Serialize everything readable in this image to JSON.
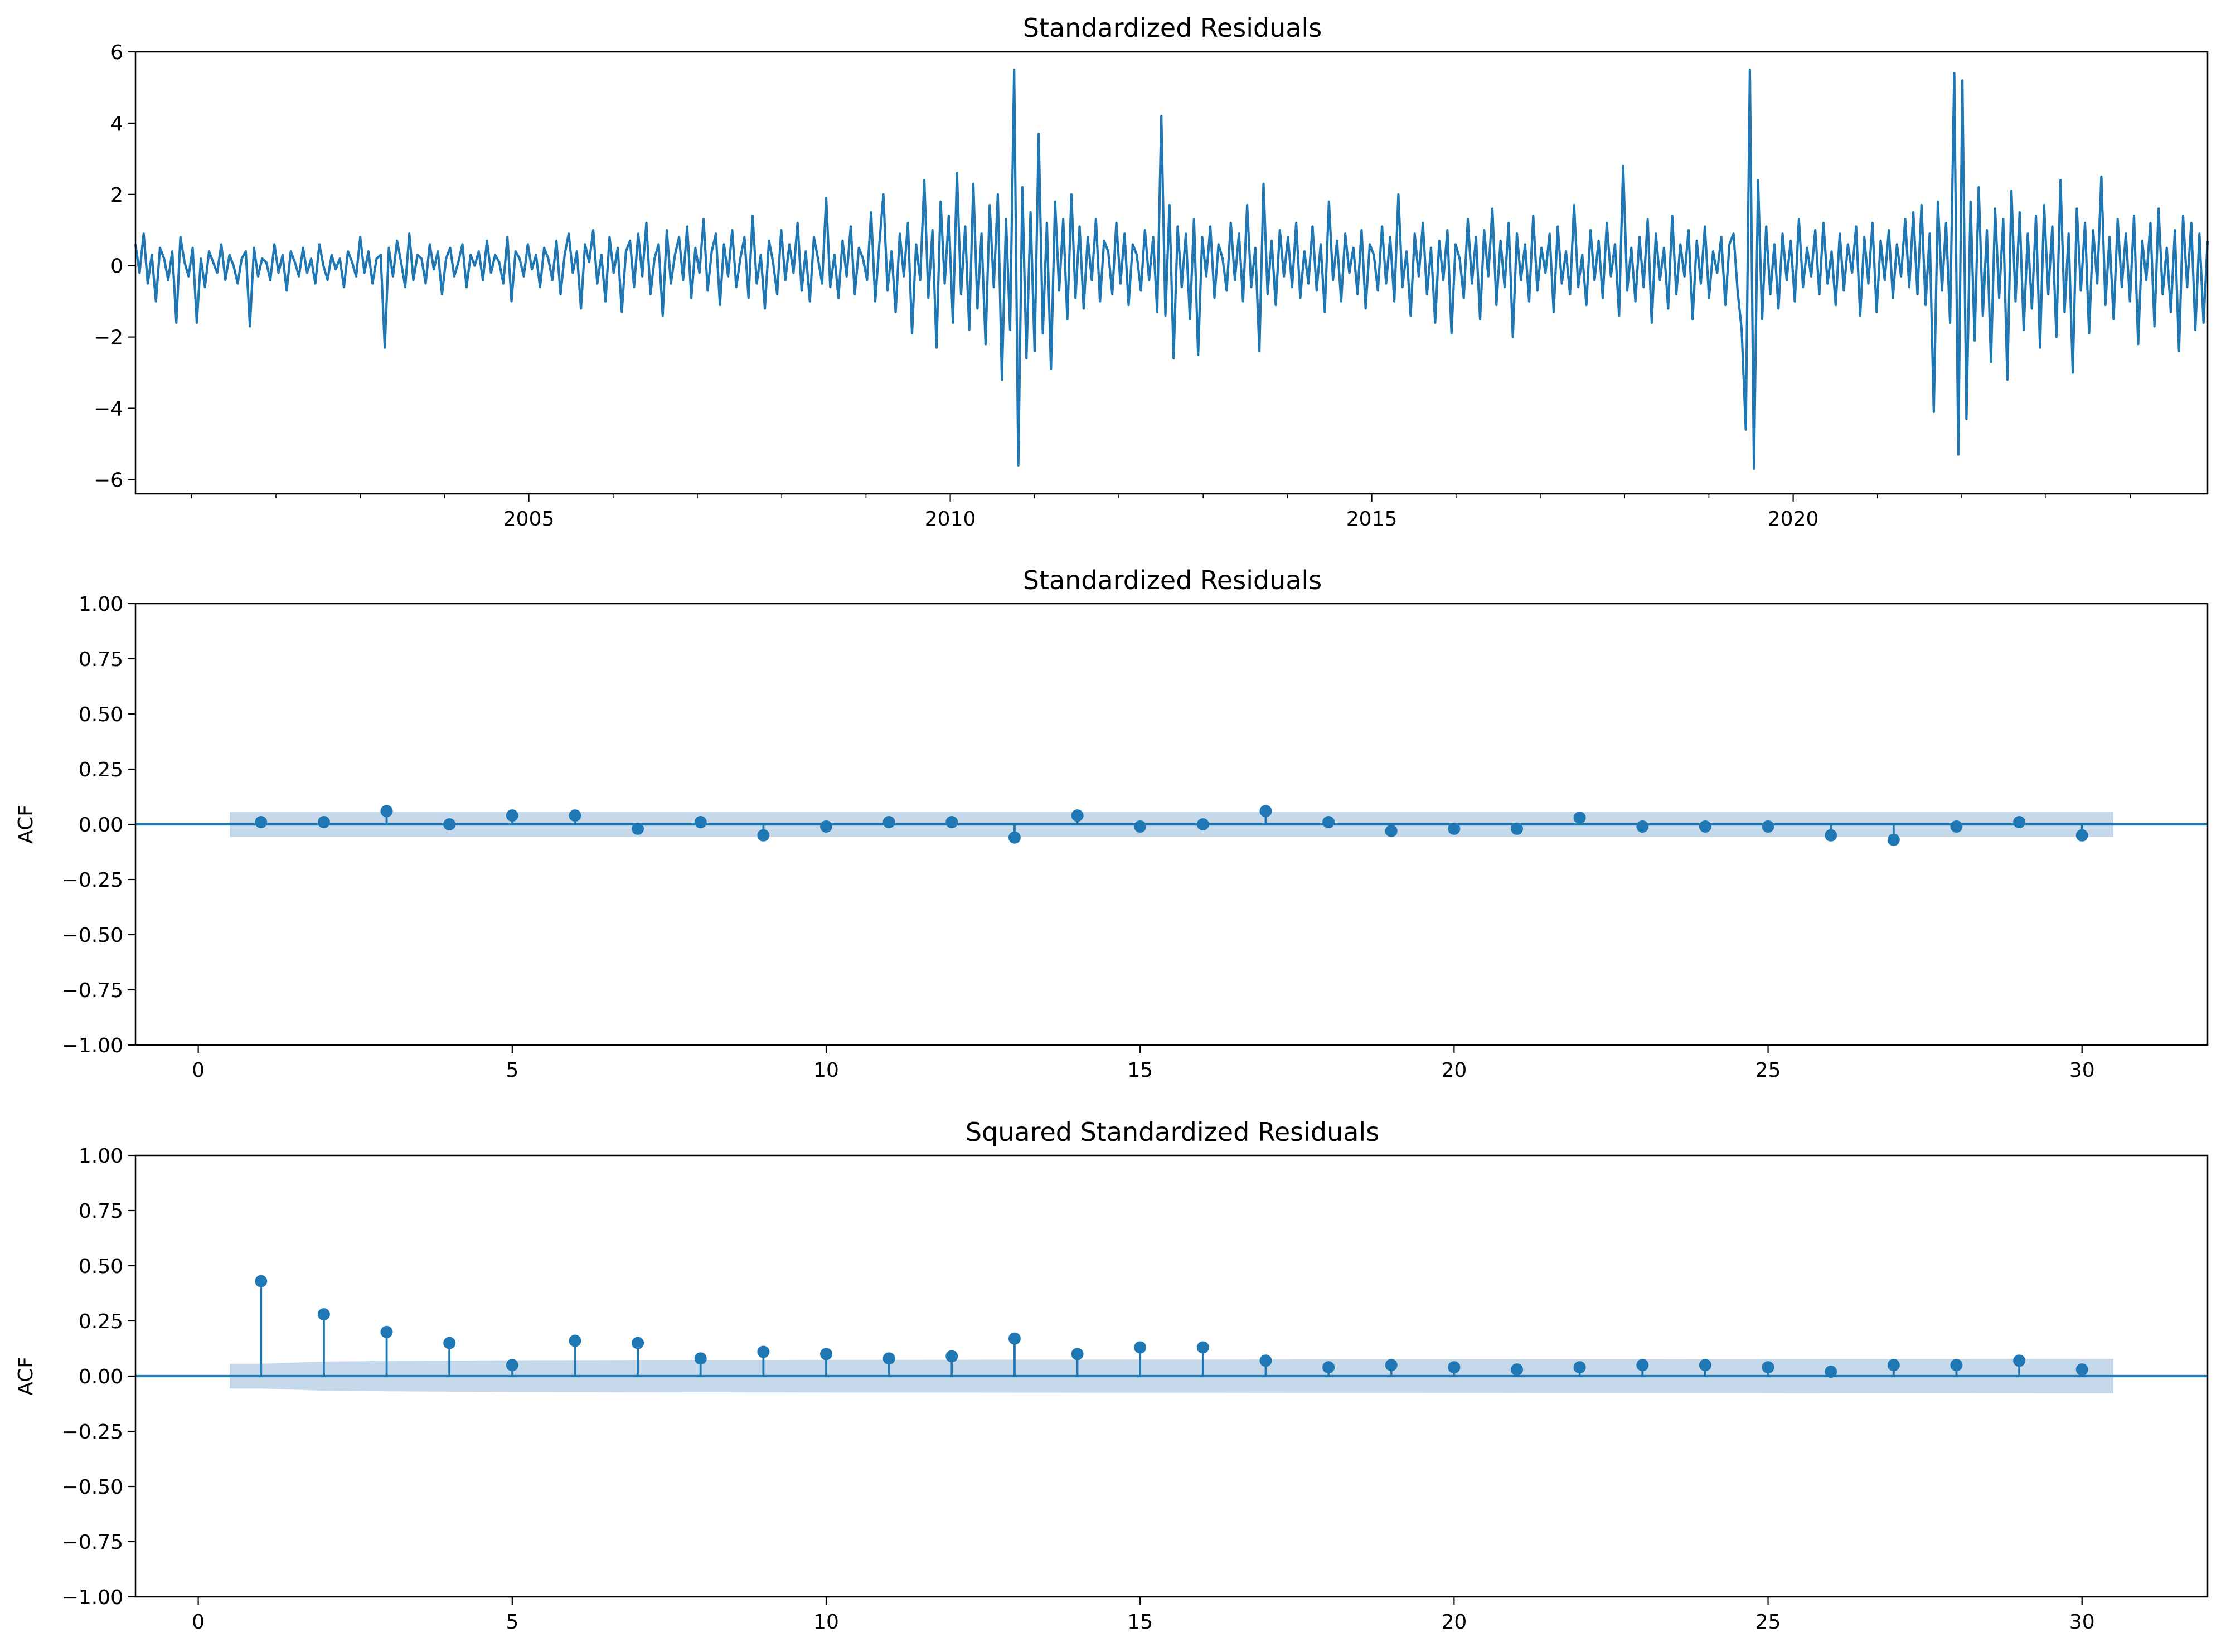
{
  "chart_data": [
    {
      "type": "line",
      "title": "Standardized Residuals",
      "xlabel": "",
      "ylabel": "",
      "x_range": [
        "2000-05",
        "2024-12"
      ],
      "ylim": [
        -6.4,
        6
      ],
      "yticks": [
        6,
        4,
        2,
        0,
        -2,
        -4,
        -6
      ],
      "ytick_labels": [
        "6",
        "4",
        "2",
        "0",
        "−2",
        "−4",
        "−6"
      ],
      "xticks": [
        "2005",
        "2010",
        "2015",
        "2020"
      ],
      "grid": false,
      "series": [
        {
          "color": "#1f77b4",
          "frequency": "weekly",
          "x_start": "2000-05",
          "values": [
            0.6,
            -0.2,
            0.9,
            -0.5,
            0.3,
            -1.0,
            0.5,
            0.2,
            -0.4,
            0.4,
            -1.6,
            0.8,
            0.1,
            -0.3,
            0.5,
            -1.6,
            0.2,
            -0.6,
            0.4,
            0.1,
            -0.2,
            0.6,
            -0.4,
            0.3,
            0.0,
            -0.5,
            0.2,
            0.4,
            -1.7,
            0.5,
            -0.3,
            0.2,
            0.1,
            -0.4,
            0.6,
            -0.2,
            0.3,
            -0.7,
            0.4,
            0.1,
            -0.3,
            0.5,
            -0.2,
            0.2,
            -0.5,
            0.6,
            0.0,
            -0.4,
            0.3,
            -0.1,
            0.2,
            -0.6,
            0.4,
            0.1,
            -0.3,
            0.8,
            -0.2,
            0.4,
            -0.5,
            0.2,
            0.3,
            -2.3,
            0.5,
            -0.3,
            0.7,
            0.1,
            -0.6,
            0.9,
            -0.4,
            0.3,
            0.2,
            -0.5,
            0.6,
            -0.1,
            0.4,
            -0.8,
            0.2,
            0.5,
            -0.3,
            0.1,
            0.6,
            -0.6,
            0.3,
            0.0,
            0.4,
            -0.4,
            0.7,
            -0.2,
            0.3,
            0.1,
            -0.5,
            0.8,
            -1.0,
            0.4,
            0.2,
            -0.3,
            0.6,
            -0.1,
            0.3,
            -0.6,
            0.5,
            0.2,
            -0.4,
            0.7,
            -0.8,
            0.3,
            0.9,
            -0.2,
            0.4,
            -1.2,
            0.6,
            0.1,
            1.0,
            -0.5,
            0.3,
            -1.0,
            0.8,
            -0.2,
            0.5,
            -1.3,
            0.4,
            0.7,
            -0.6,
            0.9,
            -0.3,
            1.2,
            -0.8,
            0.2,
            0.6,
            -1.4,
            1.0,
            -0.5,
            0.3,
            0.8,
            -0.4,
            1.1,
            -0.9,
            0.5,
            -0.2,
            1.3,
            -0.7,
            0.4,
            0.9,
            -1.1,
            0.6,
            -0.3,
            1.0,
            -0.6,
            0.2,
            0.8,
            -0.9,
            1.4,
            -0.5,
            0.3,
            -1.2,
            0.7,
            0.1,
            -0.8,
            1.0,
            -0.4,
            0.6,
            -0.2,
            1.2,
            -0.7,
            0.4,
            -1.0,
            0.8,
            0.2,
            -0.5,
            1.9,
            -0.6,
            0.3,
            -0.9,
            0.7,
            -0.3,
            1.1,
            -0.8,
            0.5,
            0.2,
            -0.4,
            1.5,
            -1.0,
            0.6,
            2.0,
            -0.7,
            0.4,
            -1.3,
            0.9,
            -0.3,
            1.2,
            -1.9,
            0.6,
            -0.4,
            2.4,
            -0.9,
            1.0,
            -2.3,
            1.8,
            -0.5,
            1.4,
            -1.6,
            2.6,
            -0.8,
            1.1,
            -1.8,
            2.3,
            -1.2,
            0.9,
            -2.2,
            1.7,
            -0.6,
            2.0,
            -3.2,
            1.3,
            -1.8,
            5.5,
            -5.6,
            2.2,
            -2.6,
            1.5,
            -2.4,
            3.7,
            -1.9,
            1.2,
            -2.9,
            1.8,
            -0.7,
            1.3,
            -1.5,
            2.0,
            -0.9,
            1.1,
            -1.2,
            0.8,
            -0.4,
            1.3,
            -1.0,
            0.7,
            0.4,
            -0.8,
            1.2,
            -0.5,
            0.9,
            -1.1,
            0.6,
            0.3,
            -0.7,
            1.0,
            -0.4,
            0.8,
            -1.3,
            4.2,
            -1.4,
            1.7,
            -2.6,
            1.1,
            -0.6,
            0.9,
            -1.5,
            1.3,
            -2.5,
            0.8,
            -0.3,
            1.1,
            -0.9,
            0.6,
            0.2,
            -0.7,
            1.2,
            -0.4,
            0.9,
            -1.0,
            1.7,
            -0.6,
            0.5,
            -2.4,
            2.3,
            -0.8,
            0.7,
            -1.1,
            1.0,
            -0.3,
            0.8,
            -0.6,
            1.2,
            -0.9,
            0.4,
            -0.5,
            1.1,
            -0.7,
            0.6,
            -1.3,
            1.8,
            -0.4,
            0.7,
            -1.0,
            0.9,
            -0.2,
            0.5,
            -0.8,
            1.0,
            -1.2,
            0.6,
            0.3,
            -0.7,
            1.1,
            -0.5,
            0.8,
            -1.0,
            2.0,
            -0.6,
            0.4,
            -1.4,
            0.9,
            -0.3,
            1.2,
            -0.8,
            0.5,
            -1.6,
            0.7,
            -0.4,
            1.0,
            -1.9,
            0.6,
            0.2,
            -0.9,
            1.3,
            -0.5,
            0.8,
            -1.5,
            1.0,
            -0.3,
            1.6,
            -1.1,
            0.7,
            -0.6,
            1.2,
            -2.0,
            0.9,
            -0.4,
            0.6,
            -1.0,
            1.4,
            -0.7,
            0.5,
            -0.2,
            0.9,
            -1.3,
            1.1,
            -0.5,
            0.4,
            -0.8,
            1.7,
            -0.6,
            0.3,
            -1.1,
            1.0,
            -0.4,
            0.7,
            -0.9,
            1.2,
            -0.3,
            0.6,
            -1.4,
            2.8,
            -0.7,
            0.5,
            -1.0,
            0.8,
            -0.6,
            1.3,
            -1.6,
            0.9,
            -0.4,
            0.5,
            -1.2,
            1.4,
            -0.8,
            0.6,
            -0.3,
            1.0,
            -1.5,
            0.7,
            -0.5,
            1.1,
            -0.9,
            0.4,
            -0.2,
            0.8,
            -1.1,
            0.6,
            0.9,
            -0.7,
            -1.8,
            -4.6,
            5.5,
            -5.7,
            2.4,
            -1.5,
            1.1,
            -0.8,
            0.6,
            -1.2,
            0.9,
            -0.4,
            0.7,
            -1.0,
            1.3,
            -0.6,
            0.5,
            -0.3,
            1.0,
            -0.8,
            1.2,
            -0.5,
            0.4,
            -1.1,
            0.9,
            -0.7,
            0.6,
            -0.2,
            1.1,
            -1.4,
            0.8,
            -0.5,
            1.2,
            -1.3,
            0.7,
            -0.4,
            1.0,
            -0.9,
            0.6,
            -0.3,
            1.3,
            -0.6,
            1.5,
            -0.8,
            1.7,
            -1.1,
            0.9,
            -4.1,
            1.8,
            -0.7,
            1.2,
            -1.6,
            5.4,
            -5.3,
            5.2,
            -4.3,
            1.8,
            -2.1,
            2.2,
            -1.4,
            1.0,
            -2.7,
            1.6,
            -0.9,
            1.3,
            -3.2,
            2.1,
            -1.0,
            1.5,
            -1.8,
            0.9,
            -1.2,
            1.4,
            -2.3,
            1.7,
            -0.8,
            1.1,
            -2.0,
            2.4,
            -1.3,
            0.9,
            -3.0,
            1.6,
            -0.7,
            1.2,
            -1.9,
            1.0,
            -0.5,
            2.5,
            -1.1,
            0.8,
            -1.5,
            1.3,
            -0.6,
            0.9,
            -1.0,
            1.4,
            -2.2,
            0.7,
            -0.4,
            1.2,
            -1.7,
            1.6,
            -0.8,
            0.5,
            -1.3,
            1.0,
            -2.4,
            1.4,
            -0.6,
            1.2,
            -1.8,
            0.9,
            -1.6,
            0.7
          ]
        }
      ]
    },
    {
      "type": "stem",
      "title": "Standardized Residuals",
      "xlabel": "",
      "ylabel": "ACF",
      "xlim": [
        -1,
        32
      ],
      "ylim": [
        -1,
        1
      ],
      "xticks": [
        0,
        5,
        10,
        15,
        20,
        25,
        30
      ],
      "yticks": [
        1.0,
        0.75,
        0.5,
        0.25,
        0.0,
        -0.25,
        -0.5,
        -0.75,
        -1.0
      ],
      "ytick_labels": [
        "1.00",
        "0.75",
        "0.50",
        "0.25",
        "0.00",
        "−0.25",
        "−0.50",
        "−0.75",
        "−1.00"
      ],
      "grid": false,
      "marker_color": "#1f77b4",
      "confidence_band_color": "#c6d9ea",
      "confidence_band": {
        "lags": [
          0.5,
          30.5
        ],
        "upper": [
          0.057,
          0.057
        ],
        "lower": [
          -0.057,
          -0.057
        ]
      },
      "lags": [
        1,
        2,
        3,
        4,
        5,
        6,
        7,
        8,
        9,
        10,
        11,
        12,
        13,
        14,
        15,
        16,
        17,
        18,
        19,
        20,
        21,
        22,
        23,
        24,
        25,
        26,
        27,
        28,
        29,
        30
      ],
      "values": [
        0.01,
        0.01,
        0.06,
        0.0,
        0.04,
        0.04,
        -0.02,
        0.01,
        -0.05,
        -0.01,
        0.01,
        0.01,
        -0.06,
        0.04,
        -0.01,
        0.0,
        0.06,
        0.01,
        -0.03,
        -0.02,
        -0.02,
        0.03,
        -0.01,
        -0.01,
        -0.01,
        -0.05,
        -0.07,
        -0.01,
        0.01,
        -0.05
      ]
    },
    {
      "type": "stem",
      "title": "Squared Standardized Residuals",
      "xlabel": "",
      "ylabel": "ACF",
      "xlim": [
        -1,
        32
      ],
      "ylim": [
        -1,
        1
      ],
      "xticks": [
        0,
        5,
        10,
        15,
        20,
        25,
        30
      ],
      "yticks": [
        1.0,
        0.75,
        0.5,
        0.25,
        0.0,
        -0.25,
        -0.5,
        -0.75,
        -1.0
      ],
      "ytick_labels": [
        "1.00",
        "0.75",
        "0.50",
        "0.25",
        "0.00",
        "−0.25",
        "−0.50",
        "−0.75",
        "−1.00"
      ],
      "grid": false,
      "marker_color": "#1f77b4",
      "confidence_band_color": "#c6d9ea",
      "confidence_band": {
        "lags": [
          0.5,
          1,
          2,
          3,
          5,
          10,
          20,
          30.5
        ],
        "upper": [
          0.056,
          0.056,
          0.066,
          0.069,
          0.072,
          0.074,
          0.076,
          0.078
        ],
        "lower": [
          -0.056,
          -0.056,
          -0.066,
          -0.069,
          -0.072,
          -0.074,
          -0.076,
          -0.078
        ]
      },
      "lags": [
        1,
        2,
        3,
        4,
        5,
        6,
        7,
        8,
        9,
        10,
        11,
        12,
        13,
        14,
        15,
        16,
        17,
        18,
        19,
        20,
        21,
        22,
        23,
        24,
        25,
        26,
        27,
        28,
        29,
        30
      ],
      "values": [
        0.43,
        0.28,
        0.2,
        0.15,
        0.05,
        0.16,
        0.15,
        0.08,
        0.11,
        0.1,
        0.08,
        0.09,
        0.17,
        0.1,
        0.13,
        0.13,
        0.07,
        0.04,
        0.05,
        0.04,
        0.03,
        0.04,
        0.05,
        0.05,
        0.04,
        0.02,
        0.05,
        0.05,
        0.07,
        0.03
      ]
    }
  ]
}
